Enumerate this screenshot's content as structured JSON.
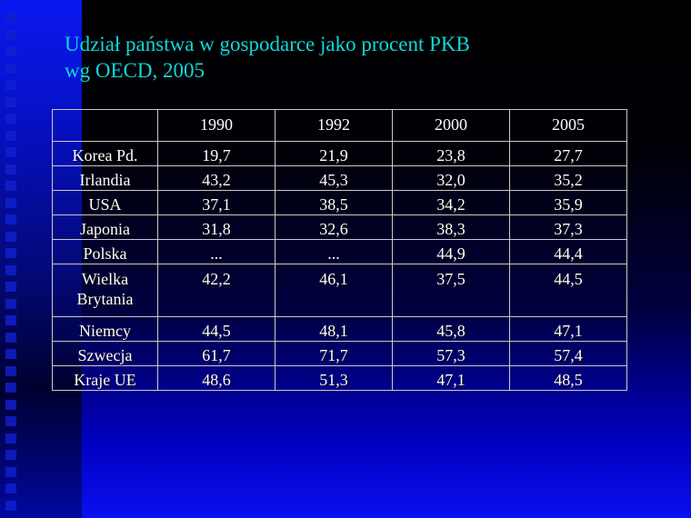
{
  "title": {
    "line1": "Udział państwa w gospodarce jako procent PKB",
    "line2": "wg OECD, 2005"
  },
  "table": {
    "headers": [
      "",
      "1990",
      "1992",
      "2000",
      "2005"
    ],
    "rows": [
      [
        "Korea Pd.",
        "19,7",
        "21,9",
        "23,8",
        "27,7"
      ],
      [
        "Irlandia",
        "43,2",
        "45,3",
        "32,0",
        "35,2"
      ],
      [
        "USA",
        "37,1",
        "38,5",
        "34,2",
        "35,9"
      ],
      [
        "Japonia",
        "31,8",
        "32,6",
        "38,3",
        "37,3"
      ],
      [
        "Polska",
        "...",
        "...",
        "44,9",
        "44,4"
      ],
      [
        "Wielka Brytania",
        "42,2",
        "46,1",
        "37,5",
        "44,5"
      ],
      [
        "Niemcy",
        "44,5",
        "48,1",
        "45,8",
        "47,1"
      ],
      [
        "Szwecja",
        "61,7",
        "71,7",
        "57,3",
        "57,4"
      ],
      [
        "Kraje UE",
        "48,6",
        "51,3",
        "47,1",
        "48,5"
      ]
    ]
  },
  "colors": {
    "title": "#10d8d8",
    "text": "#ffffff",
    "accent": "#0a18f0"
  }
}
